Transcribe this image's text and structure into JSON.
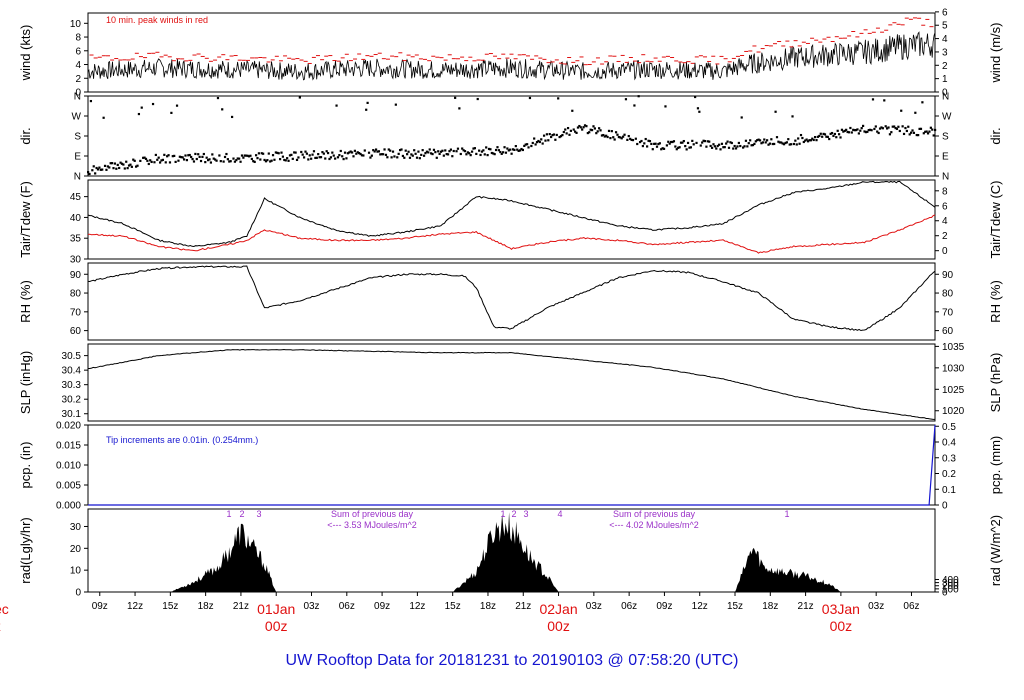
{
  "title": "UW Rooftop Data for 20181231  to  20190103 @ 07:58:20  (UTC)",
  "colors": {
    "primary": "#000000",
    "peak": "#e01010",
    "precip": "#1515d0",
    "radnote": "#9a30c8",
    "day": "#e01010"
  },
  "x_axis": {
    "hour_ticks": [
      "09z",
      "12z",
      "15z",
      "18z",
      "21z",
      "00z",
      "03z",
      "06z",
      "09z",
      "12z",
      "15z",
      "18z",
      "21z",
      "00z",
      "03z",
      "06z",
      "09z",
      "12z",
      "15z",
      "18z",
      "21z",
      "00z",
      "03z",
      "06z"
    ],
    "day_labels": [
      {
        "date": "01Jan",
        "hour": "00z"
      },
      {
        "date": "02Jan",
        "hour": "00z"
      },
      {
        "date": "03Jan",
        "hour": "00z"
      }
    ],
    "clipped_day": {
      "date": "ec",
      "hour": "z"
    }
  },
  "panels": [
    {
      "id": "wind",
      "left_label": "wind (kts)",
      "right_label": "wind (m/s)",
      "left_ticks": [
        "0",
        "2",
        "4",
        "6",
        "8",
        "10"
      ],
      "right_ticks": [
        "0",
        "1",
        "2",
        "3",
        "4",
        "5",
        "6"
      ],
      "note": "10 min. peak winds in red"
    },
    {
      "id": "dir",
      "left_label": "dir.",
      "right_label": "dir.",
      "left_ticks": [
        "N",
        "E",
        "S",
        "W",
        "N"
      ],
      "right_ticks": [
        "N",
        "E",
        "S",
        "W",
        "N"
      ]
    },
    {
      "id": "temp",
      "left_label": "Tair/Tdew (F)",
      "right_label": "Tair/Tdew (C)",
      "left_ticks": [
        "30",
        "35",
        "40",
        "45"
      ],
      "right_ticks": [
        "0",
        "2",
        "4",
        "6",
        "8"
      ]
    },
    {
      "id": "rh",
      "left_label": "RH (%)",
      "right_label": "RH (%)",
      "left_ticks": [
        "60",
        "70",
        "80",
        "90"
      ],
      "right_ticks": [
        "60",
        "70",
        "80",
        "90"
      ]
    },
    {
      "id": "slp",
      "left_label": "SLP (inHg)",
      "right_label": "SLP (hPa)",
      "left_ticks": [
        "30.1",
        "30.2",
        "30.3",
        "30.4",
        "30.5"
      ],
      "right_ticks": [
        "1020",
        "1025",
        "1030",
        "1035"
      ]
    },
    {
      "id": "pcp",
      "left_label": "pcp. (in)",
      "right_label": "pcp. (mm)",
      "left_ticks": [
        "0.000",
        "0.005",
        "0.010",
        "0.015",
        "0.020"
      ],
      "right_ticks": [
        "0",
        "0.1",
        "0.2",
        "0.3",
        "0.4",
        "0.5"
      ],
      "note": "Tip increments are 0.01in. (0.254mm.)"
    },
    {
      "id": "rad",
      "left_label": "rad(Lgly/hr)",
      "right_label": "rad (W/m^2)",
      "left_ticks": [
        "0",
        "10",
        "20",
        "30"
      ],
      "right_ticks": [
        "0",
        "100",
        "200",
        "300",
        "400"
      ],
      "notes": [
        {
          "line1": "Sum of previous day",
          "line2": "<--- 3.53 MJoules/m^2"
        },
        {
          "line1": "Sum of previous day",
          "line2": "<--- 4.02 MJoules/m^2"
        }
      ],
      "marks": [
        "1",
        "2",
        "3",
        "1",
        "2",
        "3",
        "4",
        "1"
      ]
    }
  ],
  "chart_data": {
    "type": "line",
    "x_unit": "hours since 20181231 07:58 UTC (axis labels in UTC hours)",
    "series": [
      {
        "panel": "wind",
        "name": "wind (kts)",
        "x": [
          0,
          6,
          12,
          18,
          24,
          30,
          36,
          42,
          48,
          54,
          56,
          60,
          66,
          70,
          72
        ],
        "y": [
          3.0,
          3.5,
          3.3,
          3.0,
          3.5,
          3.2,
          3.5,
          3.0,
          3.3,
          3.0,
          4.0,
          5.0,
          5.8,
          6.8,
          7.0
        ]
      },
      {
        "panel": "wind",
        "name": "10 min. peak winds",
        "x": [
          0,
          6,
          12,
          18,
          24,
          30,
          36,
          42,
          48,
          54,
          56,
          60,
          66,
          70,
          72
        ],
        "y": [
          4.8,
          5.2,
          5.0,
          4.6,
          5.2,
          5.0,
          5.1,
          4.5,
          4.9,
          4.6,
          6.0,
          7.2,
          8.5,
          10.5,
          10.0
        ]
      },
      {
        "panel": "temp",
        "name": "Tair (F)",
        "x": [
          0,
          3,
          6,
          9,
          12,
          13.5,
          15,
          18,
          21,
          24,
          27,
          30,
          33,
          36,
          39,
          42,
          45,
          48,
          51,
          54,
          57,
          60,
          63,
          66,
          69,
          72
        ],
        "y": [
          40.5,
          38.5,
          34.5,
          33,
          34,
          35.5,
          44.5,
          40,
          37,
          35.5,
          36.5,
          38,
          45,
          44,
          42,
          40,
          38,
          37,
          37.5,
          38.5,
          43,
          46,
          47,
          48.5,
          48.5,
          42.5
        ]
      },
      {
        "panel": "temp",
        "name": "Tdew (F)",
        "x": [
          0,
          3,
          6,
          9,
          12,
          13.5,
          15,
          18,
          21,
          24,
          27,
          30,
          33,
          36,
          39,
          42,
          45,
          48,
          51,
          54,
          57,
          60,
          63,
          66,
          69,
          72
        ],
        "y": [
          36,
          35.5,
          33,
          32,
          33.5,
          34.5,
          37,
          35,
          34.5,
          34.5,
          35,
          36,
          36.5,
          32.5,
          34,
          35,
          34.5,
          33.5,
          34,
          34.5,
          31.5,
          33,
          33.5,
          34,
          37,
          40.5
        ]
      },
      {
        "panel": "rh",
        "name": "RH (%)",
        "x": [
          0,
          3,
          6,
          9,
          12,
          13.5,
          15,
          18,
          21,
          24,
          27,
          30,
          32,
          33,
          34.5,
          36,
          39,
          42,
          45,
          48,
          51,
          54,
          57,
          60,
          63,
          66,
          69,
          72
        ],
        "y": [
          86,
          90,
          93,
          94,
          94,
          94,
          72,
          76,
          82,
          88,
          90,
          90,
          89,
          83,
          62,
          61,
          72,
          80,
          88,
          92,
          91,
          86,
          80,
          66,
          62,
          60,
          72,
          92
        ]
      },
      {
        "panel": "slp",
        "name": "SLP (inHg)",
        "x": [
          0,
          6,
          12,
          18,
          24,
          30,
          36,
          42,
          48,
          54,
          60,
          66,
          72
        ],
        "y": [
          30.41,
          30.5,
          30.54,
          30.54,
          30.53,
          30.52,
          30.52,
          30.47,
          30.42,
          30.34,
          30.22,
          30.13,
          30.06
        ]
      },
      {
        "panel": "pcp",
        "name": "pcp. (in)",
        "x": [
          0,
          71.5,
          72
        ],
        "y": [
          0,
          0,
          0.02
        ]
      },
      {
        "panel": "rad",
        "name": "rad (Lgly/hr)",
        "x": [
          7,
          9,
          11,
          12,
          13,
          14,
          15,
          16,
          31,
          33,
          34.5,
          35.5,
          36.5,
          37.5,
          39,
          40,
          55,
          56.5,
          57.5,
          59,
          61,
          63,
          64
        ],
        "y": [
          0,
          5,
          12,
          20,
          30,
          22,
          14,
          0,
          0,
          10,
          30,
          34,
          28,
          18,
          8,
          0,
          0,
          22,
          12,
          10,
          8,
          4,
          0
        ]
      },
      {
        "panel": "dir",
        "name": "dir. (deg)",
        "x": [
          0,
          6,
          12,
          18,
          24,
          30,
          36,
          42,
          48,
          54,
          60,
          66,
          72
        ],
        "y": [
          20,
          80,
          80,
          90,
          100,
          100,
          120,
          220,
          140,
          140,
          160,
          210,
          200
        ]
      }
    ],
    "xlim": [
      0,
      72
    ]
  }
}
